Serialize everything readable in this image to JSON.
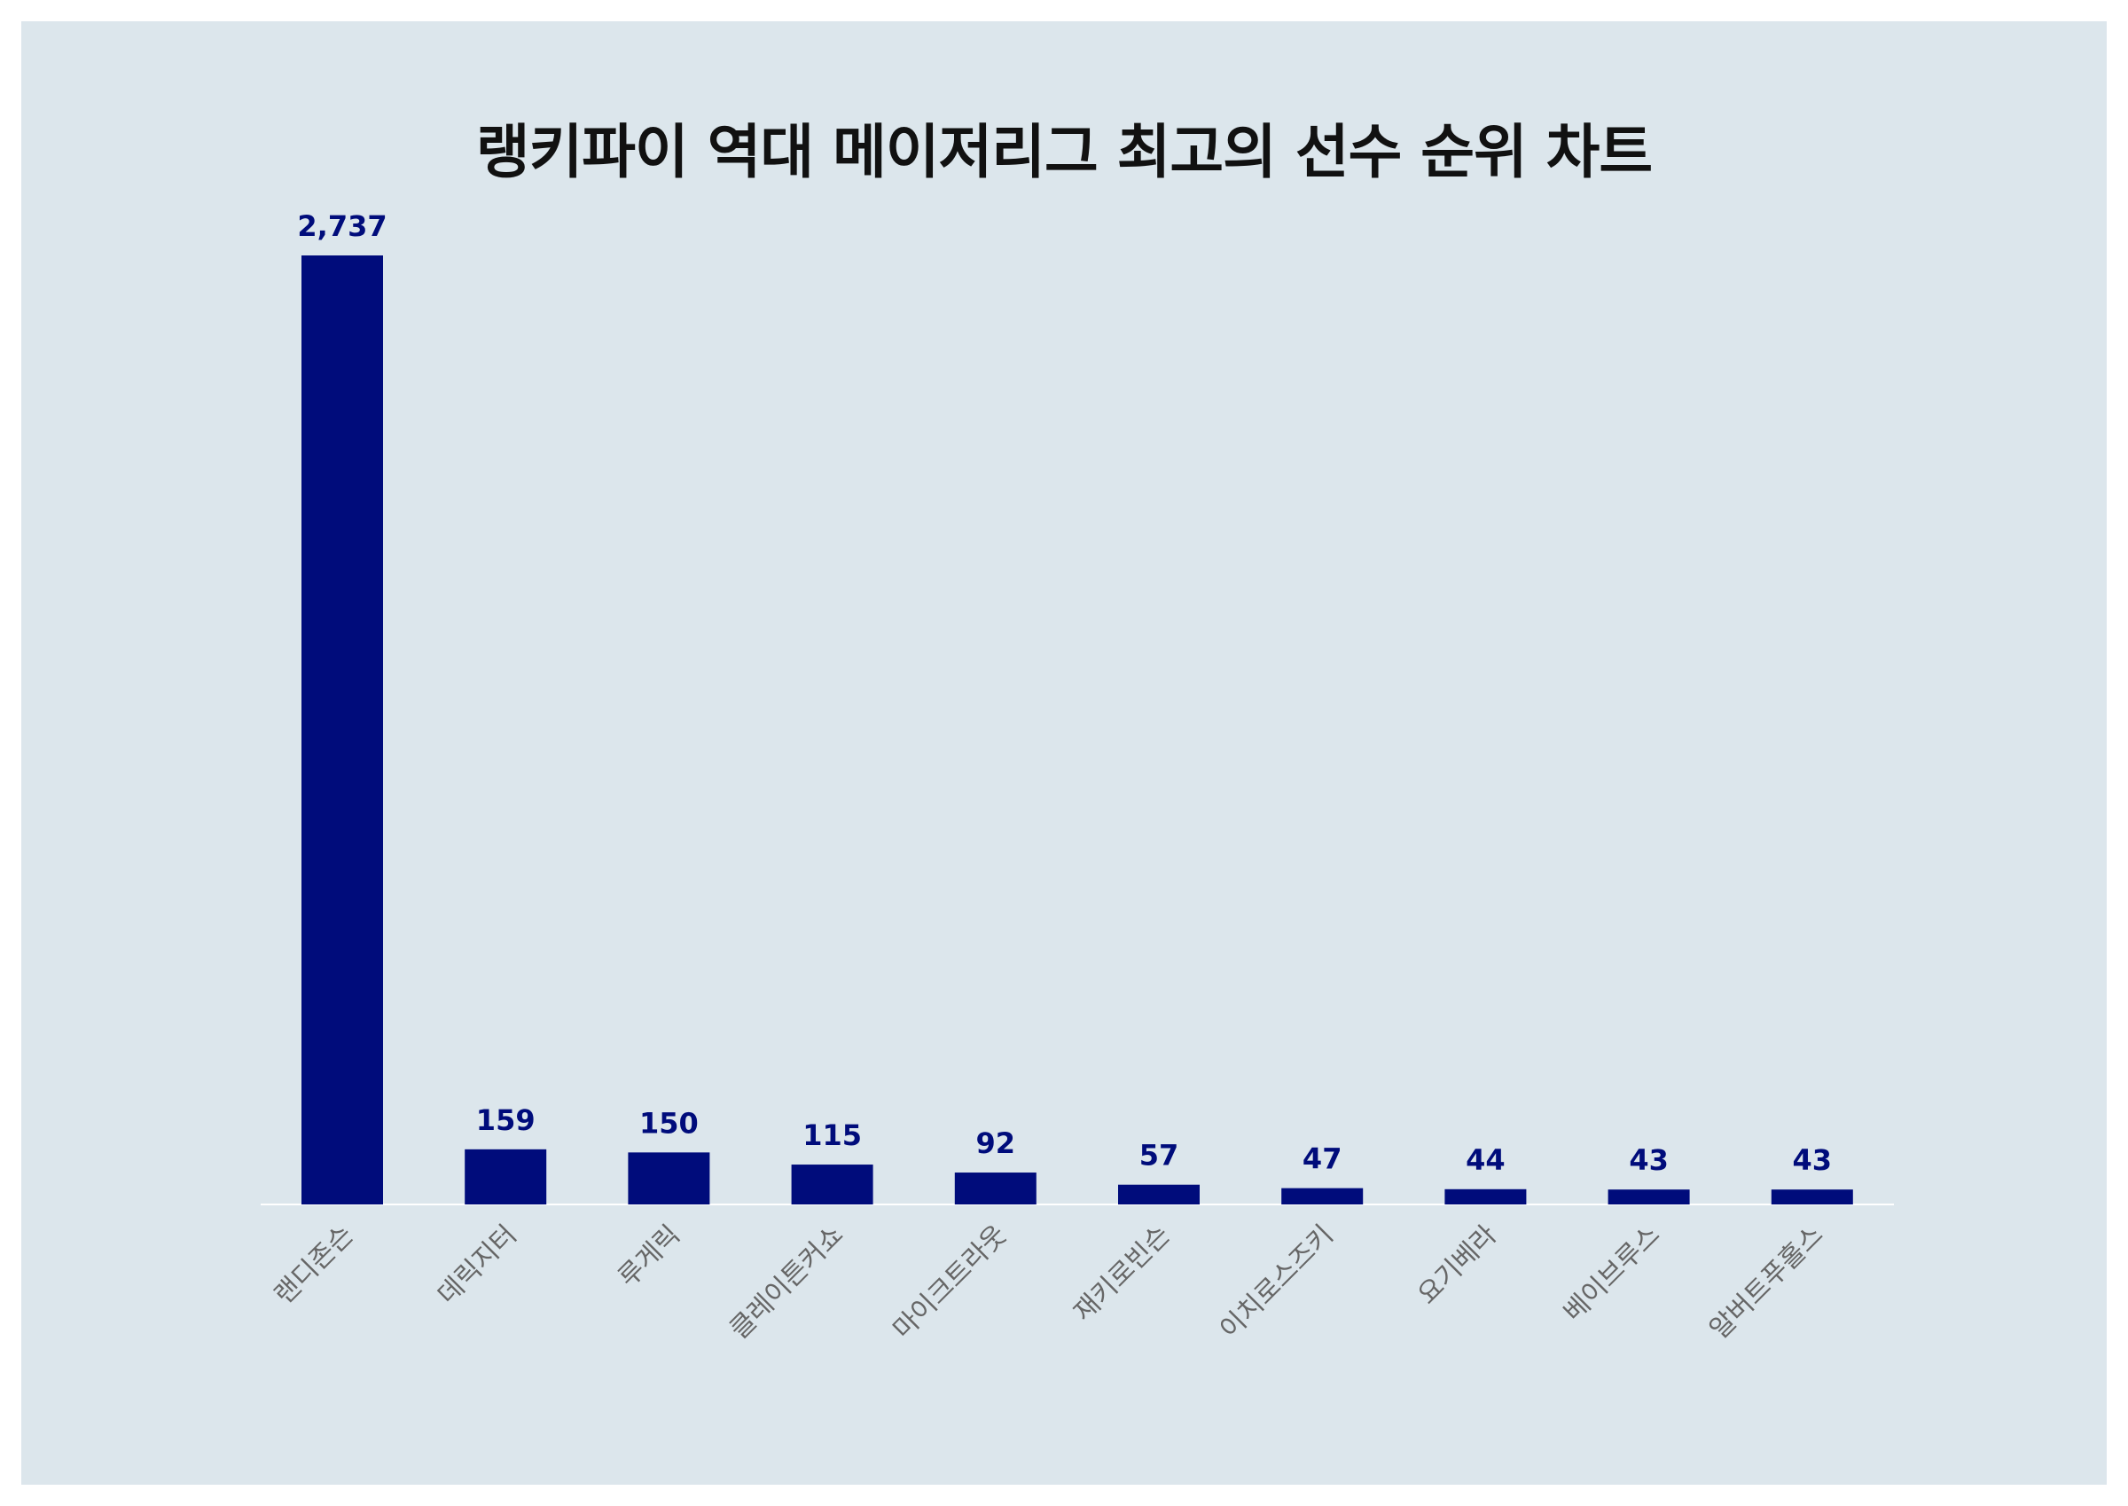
{
  "chart_data": {
    "type": "bar",
    "title": "랭키파이 역대 메이저리그 최고의 선수 순위 차트",
    "categories": [
      "랜디존슨",
      "데릭지터",
      "루게릭",
      "클레이튼커쇼",
      "마이크트라웃",
      "재키로빈슨",
      "이치로스즈키",
      "요기베라",
      "베이브루스",
      "알버트푸홀스"
    ],
    "values": [
      2737,
      159,
      150,
      115,
      92,
      57,
      47,
      44,
      43,
      43
    ],
    "value_labels": [
      "2,737",
      "159",
      "150",
      "115",
      "92",
      "57",
      "47",
      "44",
      "43",
      "43"
    ],
    "xlabel": "",
    "ylabel": "",
    "ylim": [
      0,
      2737
    ],
    "grid": false,
    "legend": "none",
    "colors": {
      "bar": "#000c7b",
      "value_label": "#000c7b",
      "tick_label": "#666666",
      "panel_background": "#dce6ec",
      "baseline": "#ffffff"
    }
  }
}
